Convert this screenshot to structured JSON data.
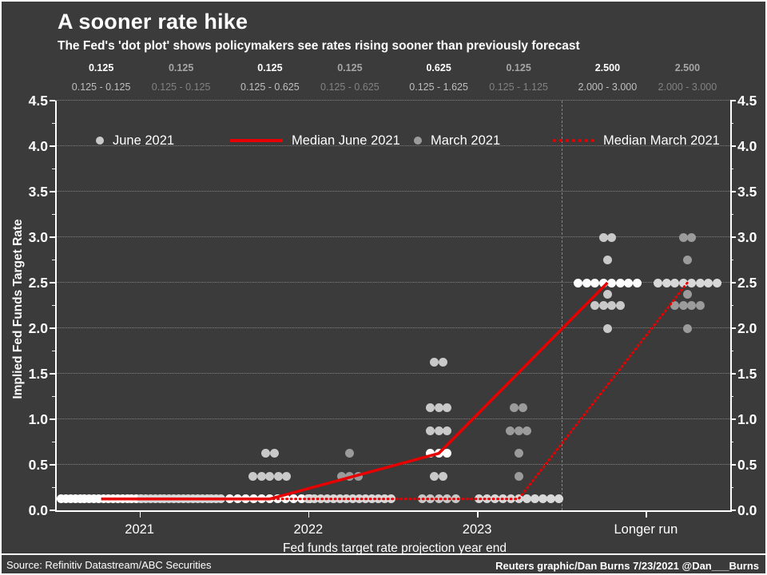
{
  "header": {
    "title": "A sooner rate hike",
    "subtitle": "The Fed's 'dot plot' shows policymakers see rates rising sooner than previously forecast"
  },
  "footer": {
    "source": "Source: Refinitiv Datastream/ABC Securities",
    "credit": "Reuters graphic/Dan Burns 7/23/2021 @Dan___Burns"
  },
  "colors": {
    "background": "#3b3b3b",
    "accent_red": "#e60000",
    "june_dot": "#c9c9c9",
    "june_median_dot": "#ffffff",
    "march_dot": "#9b9b9b",
    "march_median_dot": "#d8d8d8",
    "gridline": "#8f8f8f"
  },
  "chart_data": {
    "type": "scatter",
    "title": "A sooner rate hike",
    "subtitle": "The Fed's 'dot plot' shows policymakers see rates rising sooner than previously forecast",
    "xlabel": "Fed funds target rate projection year end",
    "ylabel": "Implied Fed Funds Target Rate",
    "ylim": [
      0,
      4.5
    ],
    "ytick_step": 0.5,
    "grid": "horizontal-dotted",
    "categories": [
      "2021",
      "2022",
      "2023",
      "Longer run"
    ],
    "header_columns": [
      {
        "tone": "june",
        "median": "0.125",
        "range": "0.125 - 0.125"
      },
      {
        "tone": "march",
        "median": "0.125",
        "range": "0.125 - 0.125"
      },
      {
        "tone": "june",
        "median": "0.125",
        "range": "0.125 - 0.625"
      },
      {
        "tone": "march",
        "median": "0.125",
        "range": "0.125 - 0.625"
      },
      {
        "tone": "june",
        "median": "0.625",
        "range": "0.125 - 1.625"
      },
      {
        "tone": "march",
        "median": "0.125",
        "range": "0.125 - 1.125"
      },
      {
        "tone": "june",
        "median": "2.500",
        "range": "2.000 - 3.000"
      },
      {
        "tone": "march",
        "median": "2.500",
        "range": "2.000 - 3.000"
      }
    ],
    "legend": [
      {
        "marker": "dot",
        "color": "#c9c9c9",
        "label": "June 2021"
      },
      {
        "marker": "line-solid",
        "color": "#e60000",
        "label": "Median June 2021"
      },
      {
        "marker": "dot",
        "color": "#9b9b9b",
        "label": "March 2021"
      },
      {
        "marker": "line-dotted",
        "color": "#e60000",
        "label": "Median March 2021"
      }
    ],
    "series": [
      {
        "name": "June 2021",
        "marker_color": "#c9c9c9",
        "median_marker_color": "#ffffff",
        "line_style": "solid",
        "line_color": "#e60000",
        "medians": [
          0.125,
          0.125,
          0.625,
          2.5
        ],
        "dots": [
          {
            "category": "2021",
            "rows": [
              {
                "value": 0.125,
                "count": 18
              }
            ]
          },
          {
            "category": "2022",
            "rows": [
              {
                "value": 0.625,
                "count": 2
              },
              {
                "value": 0.375,
                "count": 5
              },
              {
                "value": 0.125,
                "count": 11
              }
            ]
          },
          {
            "category": "2023",
            "rows": [
              {
                "value": 1.625,
                "count": 2
              },
              {
                "value": 1.125,
                "count": 3
              },
              {
                "value": 0.875,
                "count": 3
              },
              {
                "value": 0.625,
                "count": 3
              },
              {
                "value": 0.375,
                "count": 2
              },
              {
                "value": 0.125,
                "count": 5
              }
            ]
          },
          {
            "category": "Longer run",
            "rows": [
              {
                "value": 3.0,
                "count": 2
              },
              {
                "value": 2.75,
                "count": 1
              },
              {
                "value": 2.5,
                "count": 8
              },
              {
                "value": 2.375,
                "count": 1
              },
              {
                "value": 2.25,
                "count": 4
              },
              {
                "value": 2.0,
                "count": 1
              }
            ]
          }
        ]
      },
      {
        "name": "March 2021",
        "marker_color": "#9b9b9b",
        "median_marker_color": "#d8d8d8",
        "line_style": "dotted",
        "line_color": "#e60000",
        "medians": [
          0.125,
          0.125,
          0.125,
          2.5
        ],
        "dots": [
          {
            "category": "2021",
            "rows": [
              {
                "value": 0.125,
                "count": 18
              }
            ]
          },
          {
            "category": "2022",
            "rows": [
              {
                "value": 0.625,
                "count": 1
              },
              {
                "value": 0.375,
                "count": 3
              },
              {
                "value": 0.125,
                "count": 14
              }
            ]
          },
          {
            "category": "2023",
            "rows": [
              {
                "value": 1.125,
                "count": 2
              },
              {
                "value": 0.875,
                "count": 3
              },
              {
                "value": 0.625,
                "count": 1
              },
              {
                "value": 0.375,
                "count": 1
              },
              {
                "value": 0.125,
                "count": 11
              }
            ]
          },
          {
            "category": "Longer run",
            "rows": [
              {
                "value": 3.0,
                "count": 2
              },
              {
                "value": 2.75,
                "count": 1
              },
              {
                "value": 2.5,
                "count": 8
              },
              {
                "value": 2.375,
                "count": 1
              },
              {
                "value": 2.25,
                "count": 4
              },
              {
                "value": 2.0,
                "count": 1
              }
            ]
          }
        ]
      }
    ]
  }
}
